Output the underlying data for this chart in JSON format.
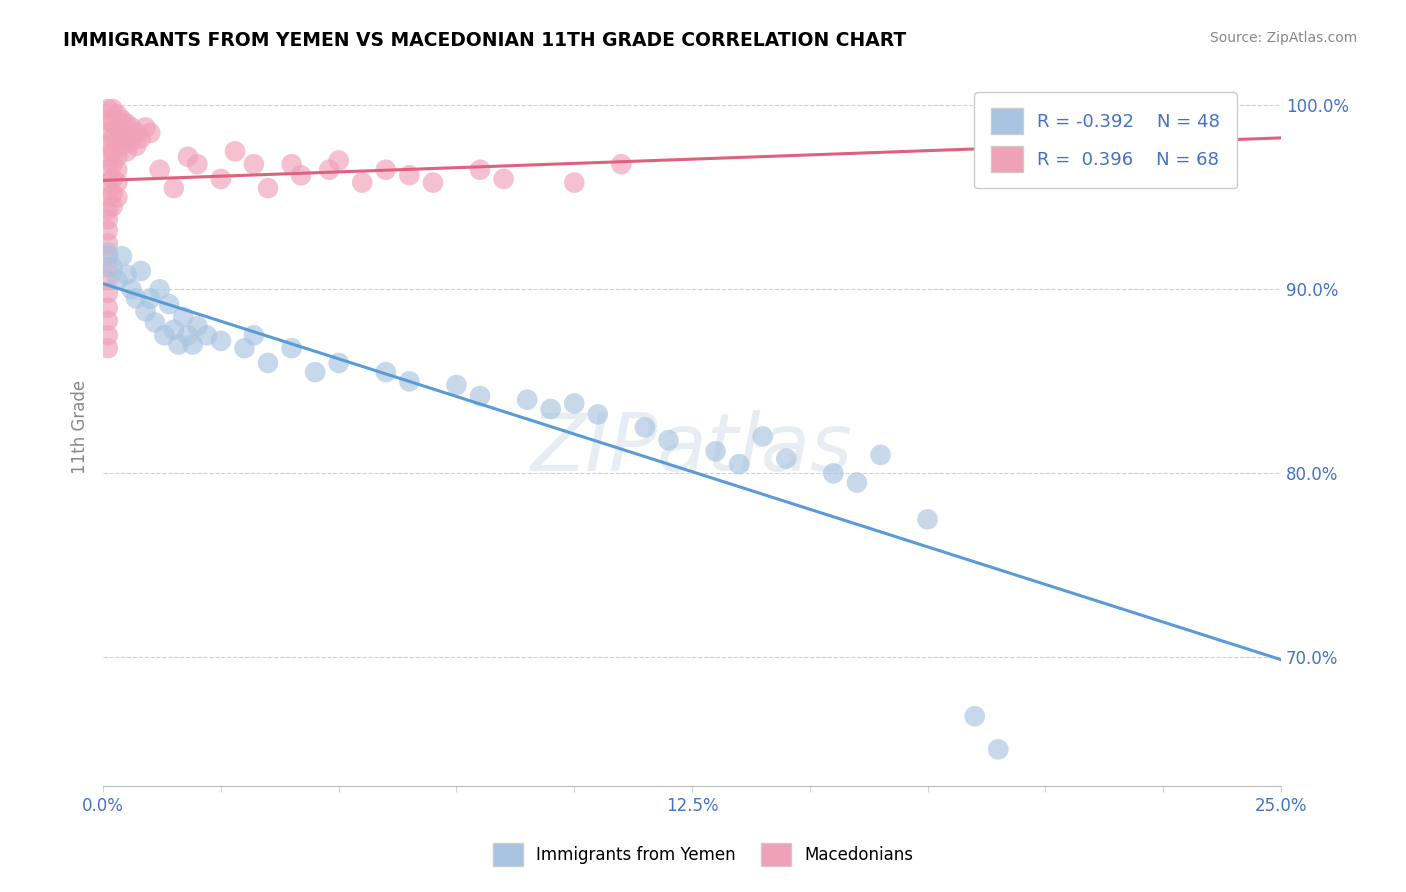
{
  "title": "IMMIGRANTS FROM YEMEN VS MACEDONIAN 11TH GRADE CORRELATION CHART",
  "source": "Source: ZipAtlas.com",
  "ylabel": "11th Grade",
  "xlabel": "",
  "xlim": [
    0.0,
    0.25
  ],
  "ylim": [
    0.63,
    1.02
  ],
  "yticks": [
    0.7,
    0.8,
    0.9,
    1.0
  ],
  "ytick_labels": [
    "70.0%",
    "80.0%",
    "90.0%",
    "100.0%"
  ],
  "xticks": [
    0.0,
    0.025,
    0.05,
    0.075,
    0.1,
    0.125,
    0.15,
    0.175,
    0.2,
    0.225,
    0.25
  ],
  "xtick_labels": [
    "0.0%",
    "",
    "",
    "",
    "",
    "12.5%",
    "",
    "",
    "",
    "",
    "25.0%"
  ],
  "blue_color": "#a8c4e0",
  "pink_color": "#f0a0b8",
  "blue_line_color": "#5b9bd5",
  "pink_line_color": "#e06080",
  "watermark": "ZIPatlas",
  "legend_blue_r": "R = -0.392",
  "legend_blue_n": "N = 48",
  "legend_pink_r": "R =  0.396",
  "legend_pink_n": "N = 68",
  "blue_points": [
    [
      0.001,
      0.92
    ],
    [
      0.002,
      0.912
    ],
    [
      0.003,
      0.905
    ],
    [
      0.004,
      0.918
    ],
    [
      0.005,
      0.908
    ],
    [
      0.006,
      0.9
    ],
    [
      0.007,
      0.895
    ],
    [
      0.008,
      0.91
    ],
    [
      0.009,
      0.888
    ],
    [
      0.01,
      0.895
    ],
    [
      0.011,
      0.882
    ],
    [
      0.012,
      0.9
    ],
    [
      0.013,
      0.875
    ],
    [
      0.014,
      0.892
    ],
    [
      0.015,
      0.878
    ],
    [
      0.016,
      0.87
    ],
    [
      0.017,
      0.885
    ],
    [
      0.018,
      0.875
    ],
    [
      0.019,
      0.87
    ],
    [
      0.02,
      0.88
    ],
    [
      0.022,
      0.875
    ],
    [
      0.025,
      0.872
    ],
    [
      0.03,
      0.868
    ],
    [
      0.032,
      0.875
    ],
    [
      0.035,
      0.86
    ],
    [
      0.04,
      0.868
    ],
    [
      0.045,
      0.855
    ],
    [
      0.05,
      0.86
    ],
    [
      0.06,
      0.855
    ],
    [
      0.065,
      0.85
    ],
    [
      0.075,
      0.848
    ],
    [
      0.08,
      0.842
    ],
    [
      0.09,
      0.84
    ],
    [
      0.095,
      0.835
    ],
    [
      0.1,
      0.838
    ],
    [
      0.105,
      0.832
    ],
    [
      0.115,
      0.825
    ],
    [
      0.12,
      0.818
    ],
    [
      0.13,
      0.812
    ],
    [
      0.135,
      0.805
    ],
    [
      0.14,
      0.82
    ],
    [
      0.145,
      0.808
    ],
    [
      0.155,
      0.8
    ],
    [
      0.16,
      0.795
    ],
    [
      0.165,
      0.81
    ],
    [
      0.175,
      0.775
    ],
    [
      0.185,
      0.668
    ],
    [
      0.19,
      0.65
    ]
  ],
  "pink_points": [
    [
      0.001,
      0.998
    ],
    [
      0.001,
      0.992
    ],
    [
      0.001,
      0.986
    ],
    [
      0.001,
      0.978
    ],
    [
      0.001,
      0.972
    ],
    [
      0.001,
      0.965
    ],
    [
      0.001,
      0.958
    ],
    [
      0.001,
      0.95
    ],
    [
      0.001,
      0.943
    ],
    [
      0.001,
      0.938
    ],
    [
      0.001,
      0.932
    ],
    [
      0.001,
      0.925
    ],
    [
      0.001,
      0.918
    ],
    [
      0.001,
      0.912
    ],
    [
      0.001,
      0.905
    ],
    [
      0.001,
      0.898
    ],
    [
      0.001,
      0.89
    ],
    [
      0.001,
      0.883
    ],
    [
      0.001,
      0.875
    ],
    [
      0.001,
      0.868
    ],
    [
      0.002,
      0.998
    ],
    [
      0.002,
      0.99
    ],
    [
      0.002,
      0.982
    ],
    [
      0.002,
      0.975
    ],
    [
      0.002,
      0.968
    ],
    [
      0.002,
      0.96
    ],
    [
      0.002,
      0.952
    ],
    [
      0.002,
      0.945
    ],
    [
      0.003,
      0.995
    ],
    [
      0.003,
      0.988
    ],
    [
      0.003,
      0.98
    ],
    [
      0.003,
      0.972
    ],
    [
      0.003,
      0.965
    ],
    [
      0.003,
      0.958
    ],
    [
      0.003,
      0.95
    ],
    [
      0.004,
      0.992
    ],
    [
      0.004,
      0.985
    ],
    [
      0.004,
      0.978
    ],
    [
      0.005,
      0.99
    ],
    [
      0.005,
      0.982
    ],
    [
      0.005,
      0.975
    ],
    [
      0.006,
      0.988
    ],
    [
      0.006,
      0.98
    ],
    [
      0.007,
      0.985
    ],
    [
      0.007,
      0.978
    ],
    [
      0.008,
      0.982
    ],
    [
      0.009,
      0.988
    ],
    [
      0.01,
      0.985
    ],
    [
      0.012,
      0.965
    ],
    [
      0.015,
      0.955
    ],
    [
      0.018,
      0.972
    ],
    [
      0.02,
      0.968
    ],
    [
      0.025,
      0.96
    ],
    [
      0.028,
      0.975
    ],
    [
      0.032,
      0.968
    ],
    [
      0.035,
      0.955
    ],
    [
      0.04,
      0.968
    ],
    [
      0.042,
      0.962
    ],
    [
      0.048,
      0.965
    ],
    [
      0.05,
      0.97
    ],
    [
      0.055,
      0.958
    ],
    [
      0.06,
      0.965
    ],
    [
      0.065,
      0.962
    ],
    [
      0.07,
      0.958
    ],
    [
      0.08,
      0.965
    ],
    [
      0.085,
      0.96
    ],
    [
      0.1,
      0.958
    ],
    [
      0.11,
      0.968
    ]
  ]
}
